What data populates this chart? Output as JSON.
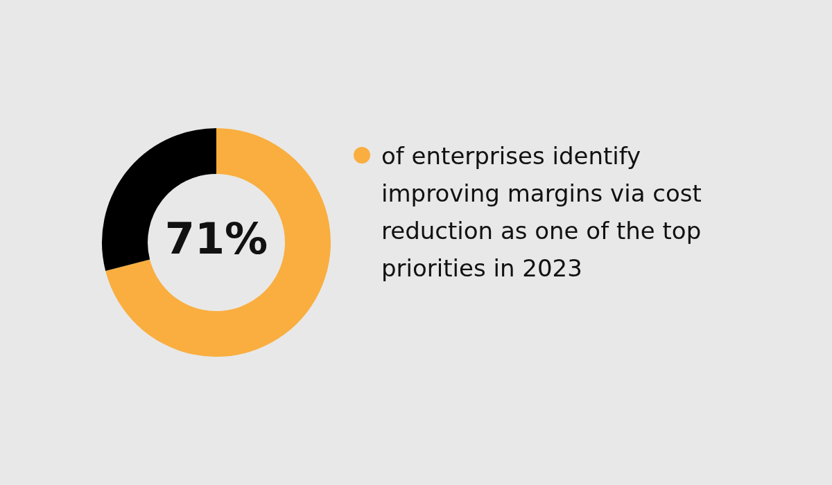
{
  "chart_data": {
    "type": "donut",
    "categories": [
      "of enterprises identify improving margins via cost reduction as one of the top priorities in 2023",
      null
    ],
    "values": [
      71,
      29
    ],
    "colors": [
      "#f9ae3f",
      "#000000"
    ],
    "value_labels": [
      "71%",
      null
    ],
    "legend": "right"
  }
}
